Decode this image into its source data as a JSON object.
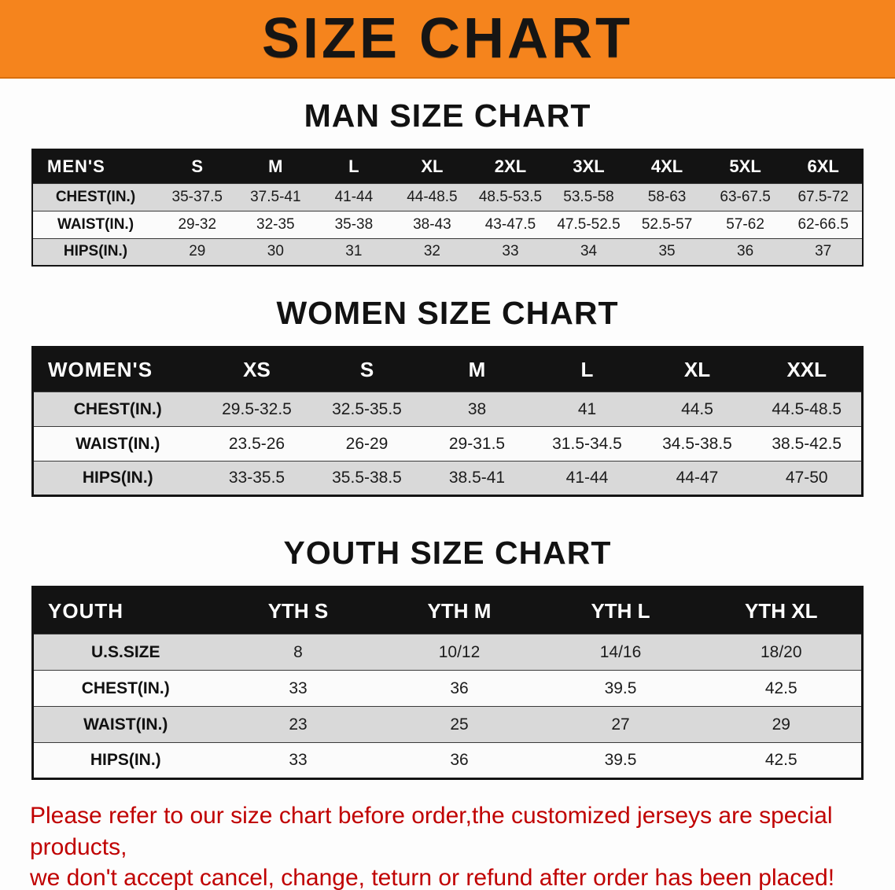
{
  "banner": {
    "title": "SIZE CHART"
  },
  "colors": {
    "banner_orange": "#f5841d",
    "table_header_black": "#131313",
    "stripe_gray": "#d9d9d9",
    "disclaimer_red": "#c00000"
  },
  "sections": {
    "men": {
      "heading": "MAN SIZE CHART",
      "table": {
        "header": [
          "MEN'S",
          "S",
          "M",
          "L",
          "XL",
          "2XL",
          "3XL",
          "4XL",
          "5XL",
          "6XL"
        ],
        "rows": [
          {
            "label": "CHEST(IN.)",
            "values": [
              "35-37.5",
              "37.5-41",
              "41-44",
              "44-48.5",
              "48.5-53.5",
              "53.5-58",
              "58-63",
              "63-67.5",
              "67.5-72"
            ]
          },
          {
            "label": "WAIST(IN.)",
            "values": [
              "29-32",
              "32-35",
              "35-38",
              "38-43",
              "43-47.5",
              "47.5-52.5",
              "52.5-57",
              "57-62",
              "62-66.5"
            ]
          },
          {
            "label": "HIPS(IN.)",
            "values": [
              "29",
              "30",
              "31",
              "32",
              "33",
              "34",
              "35",
              "36",
              "37"
            ]
          }
        ]
      }
    },
    "women": {
      "heading": "WOMEN SIZE CHART",
      "table": {
        "header": [
          "WOMEN'S",
          "XS",
          "S",
          "M",
          "L",
          "XL",
          "XXL"
        ],
        "rows": [
          {
            "label": "CHEST(IN.)",
            "values": [
              "29.5-32.5",
              "32.5-35.5",
              "38",
              "41",
              "44.5",
              "44.5-48.5"
            ]
          },
          {
            "label": "WAIST(IN.)",
            "values": [
              "23.5-26",
              "26-29",
              "29-31.5",
              "31.5-34.5",
              "34.5-38.5",
              "38.5-42.5"
            ]
          },
          {
            "label": "HIPS(IN.)",
            "values": [
              "33-35.5",
              "35.5-38.5",
              "38.5-41",
              "41-44",
              "44-47",
              "47-50"
            ]
          }
        ]
      }
    },
    "youth": {
      "heading": "YOUTH SIZE CHART",
      "table": {
        "header": [
          "YOUTH",
          "YTH S",
          "YTH M",
          "YTH L",
          "YTH XL"
        ],
        "rows": [
          {
            "label": "U.S.SIZE",
            "values": [
              "8",
              "10/12",
              "14/16",
              "18/20"
            ]
          },
          {
            "label": "CHEST(IN.)",
            "values": [
              "33",
              "36",
              "39.5",
              "42.5"
            ]
          },
          {
            "label": "WAIST(IN.)",
            "values": [
              "23",
              "25",
              "27",
              "29"
            ]
          },
          {
            "label": "HIPS(IN.)",
            "values": [
              "33",
              "36",
              "39.5",
              "42.5"
            ]
          }
        ]
      }
    }
  },
  "disclaimer": {
    "line1": "Please refer to our size chart before order,the customized jerseys are special products,",
    "line2": "we don't accept cancel, change, teturn or refund after order has been placed!"
  }
}
